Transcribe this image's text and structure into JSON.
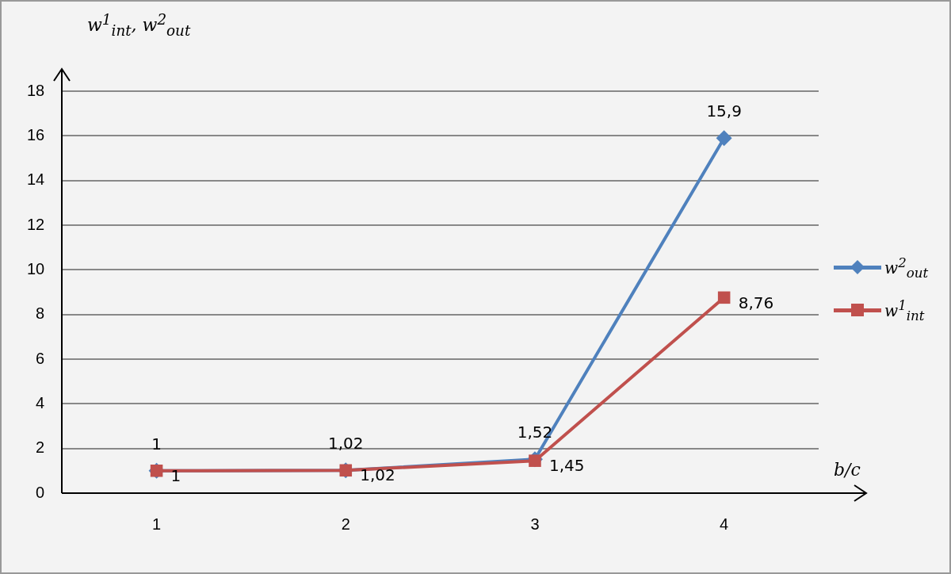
{
  "chart_data": {
    "type": "line",
    "xlabel": "b/c",
    "ylabel": "w$^{1}$$_{int}$, w$^{2}$$_{out}$",
    "categories": [
      "1",
      "2",
      "3",
      "4"
    ],
    "series": [
      {
        "name": "w$^{2}$$_{out}$",
        "color": "#4f81bd",
        "marker": "diamond",
        "values": [
          1,
          1.02,
          1.52,
          15.9
        ],
        "value_labels": [
          "1",
          "1,02",
          "1,52",
          "15,9"
        ]
      },
      {
        "name": "w$^{1}$$_{int}$",
        "color": "#c0504d",
        "marker": "square",
        "values": [
          1,
          1.02,
          1.45,
          8.76
        ],
        "value_labels": [
          "1",
          "1,02",
          "1,45",
          "8,76"
        ]
      }
    ],
    "ylim": [
      0,
      19
    ],
    "yticks": [
      0,
      2,
      4,
      6,
      8,
      10,
      12,
      14,
      16,
      18
    ],
    "grid": "y",
    "legend": "right"
  }
}
